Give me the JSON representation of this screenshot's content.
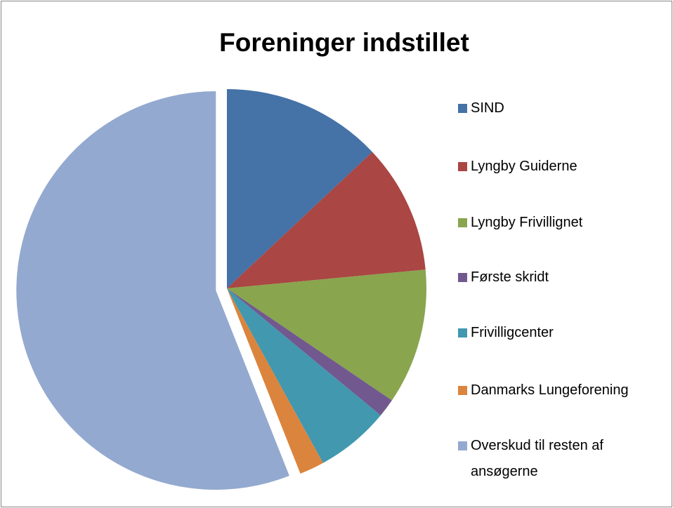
{
  "chart_data": {
    "type": "pie",
    "title": "Foreninger indstillet",
    "categories": [
      "SIND",
      "Lyngby Guiderne",
      "Lyngby Frivillignet",
      "Første skridt",
      "Frivilligcenter",
      "Danmarks Lungeforening",
      "Overskud til resten af ansøgerne"
    ],
    "values": [
      13,
      10.5,
      11,
      1.5,
      6,
      2,
      56
    ],
    "colors": [
      "#4572A7",
      "#AA4643",
      "#89A54E",
      "#71588F",
      "#4198AF",
      "#DB843D",
      "#93A9CF"
    ],
    "exploded": [
      6
    ],
    "legend": "right"
  }
}
